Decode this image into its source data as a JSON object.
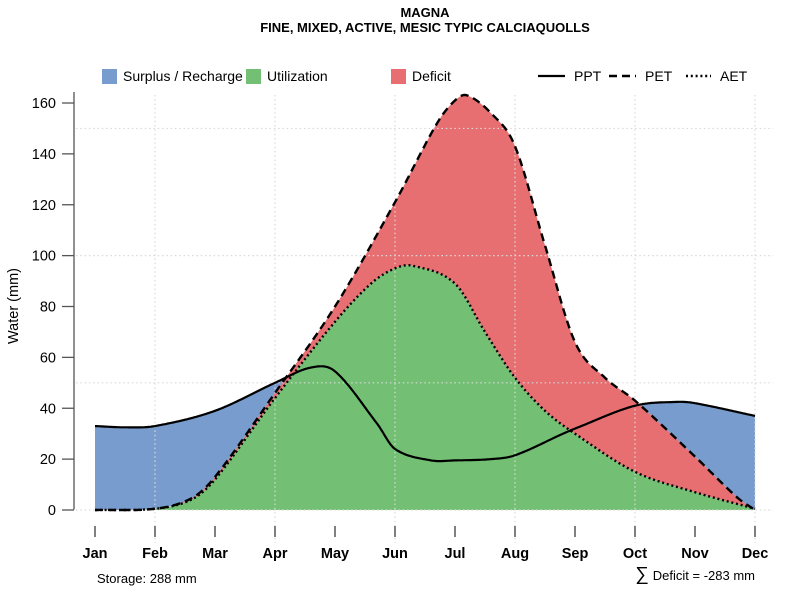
{
  "chart_data": {
    "type": "area",
    "title": "MAGNA",
    "subtitle": "FINE, MIXED, ACTIVE, MESIC TYPIC CALCIAQUOLLS",
    "ylabel": "Water (mm)",
    "ylim": [
      0,
      160
    ],
    "yticks": [
      0,
      20,
      40,
      60,
      80,
      100,
      120,
      140,
      160
    ],
    "categories": [
      "Jan",
      "Feb",
      "Mar",
      "Apr",
      "May",
      "Jun",
      "Jul",
      "Aug",
      "Sep",
      "Oct",
      "Nov",
      "Dec"
    ],
    "grid": {
      "h_values": [
        0,
        50,
        100,
        150
      ],
      "v_categories": [
        "Feb",
        "Apr",
        "Jun",
        "Aug",
        "Oct",
        "Dec"
      ]
    },
    "series": [
      {
        "name": "PPT",
        "line": "solid",
        "monthly_values": [
          33,
          33,
          39,
          50,
          54,
          24,
          20,
          21,
          32,
          41,
          42,
          37
        ],
        "points": [
          [
            0,
            33
          ],
          [
            0.5,
            32.5
          ],
          [
            1,
            33
          ],
          [
            2,
            39
          ],
          [
            3,
            50
          ],
          [
            3.6,
            56
          ],
          [
            4,
            54.5
          ],
          [
            4.7,
            34
          ],
          [
            5,
            24
          ],
          [
            5.6,
            19.5
          ],
          [
            6,
            19.5
          ],
          [
            6.6,
            20
          ],
          [
            7,
            21.5
          ],
          [
            7.8,
            30
          ],
          [
            8,
            32
          ],
          [
            9,
            41
          ],
          [
            9.7,
            42.5
          ],
          [
            10,
            42
          ],
          [
            11,
            37
          ]
        ]
      },
      {
        "name": "PET",
        "line": "dashed",
        "monthly_values": [
          0,
          0.5,
          13,
          46,
          80,
          121,
          161,
          143,
          66,
          43,
          21,
          0
        ],
        "points": [
          [
            0,
            0
          ],
          [
            1,
            0.5
          ],
          [
            1.6,
            4.5
          ],
          [
            2,
            13
          ],
          [
            3,
            46
          ],
          [
            4,
            80
          ],
          [
            5,
            121
          ],
          [
            5.7,
            152
          ],
          [
            6,
            161
          ],
          [
            6.2,
            163
          ],
          [
            6.6,
            156
          ],
          [
            7,
            143
          ],
          [
            7.5,
            104
          ],
          [
            8,
            66
          ],
          [
            8.5,
            52
          ],
          [
            9,
            43
          ],
          [
            10,
            21
          ],
          [
            10.7,
            5
          ],
          [
            11,
            0
          ]
        ]
      },
      {
        "name": "AET",
        "line": "dotted",
        "monthly_values": [
          0,
          0.5,
          12,
          44,
          74,
          95,
          89,
          52,
          30,
          15,
          7,
          0
        ],
        "points": [
          [
            0,
            0
          ],
          [
            1,
            0.5
          ],
          [
            1.6,
            4
          ],
          [
            2,
            12
          ],
          [
            3,
            44
          ],
          [
            4,
            74
          ],
          [
            4.6,
            89
          ],
          [
            5,
            95
          ],
          [
            5.3,
            96
          ],
          [
            6,
            89
          ],
          [
            6.5,
            70
          ],
          [
            7,
            52
          ],
          [
            7.5,
            39
          ],
          [
            8,
            30
          ],
          [
            9,
            15
          ],
          [
            10,
            7
          ],
          [
            11,
            0.5
          ]
        ]
      }
    ],
    "regions": [
      {
        "name": "surplus-recharge",
        "label": "Surplus / Recharge",
        "color": "#789CCD",
        "rule": "ppt-over-pet"
      },
      {
        "name": "utilization",
        "label": "Utilization",
        "color": "#73C075",
        "rule": "under-aet"
      },
      {
        "name": "deficit",
        "label": "Deficit",
        "color": "#E76F72",
        "rule": "pet-over-aet"
      }
    ],
    "line_legend": [
      {
        "label": "PPT",
        "style": "solid"
      },
      {
        "label": "PET",
        "style": "dashed"
      },
      {
        "label": "AET",
        "style": "dotted"
      }
    ],
    "annotations": {
      "storage": "Storage: 288 mm",
      "storage_mm": 288,
      "deficit_sum_symbol": "∑",
      "deficit_sum": "Deficit = -283 mm",
      "deficit_sum_mm": -283
    },
    "colors": {
      "grid": "#D9D9D9",
      "axis": "#555555",
      "curve": "#000000"
    }
  }
}
